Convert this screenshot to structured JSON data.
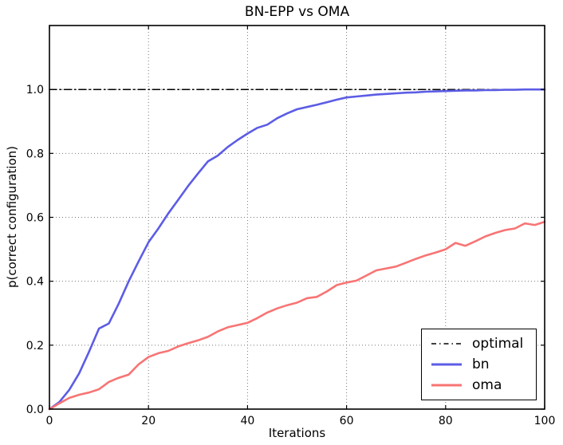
{
  "figure": {
    "background": "#ffffff"
  },
  "chart_data": {
    "type": "line",
    "title": "BN-EPP vs OMA",
    "xlabel": "Iterations",
    "ylabel": "p(correct configuration)",
    "xlim": [
      0,
      100
    ],
    "ylim": [
      0,
      1.2
    ],
    "grid": "dotted",
    "grid_color": "#777777",
    "axis_color": "#000000",
    "background_color": "#ffffff",
    "legend_position": "lower right",
    "xticks": {
      "values": [
        0,
        20,
        40,
        60,
        80,
        100
      ],
      "labels": [
        "0",
        "20",
        "40",
        "60",
        "80",
        "100"
      ]
    },
    "yticks": {
      "values": [
        0,
        0.2,
        0.4,
        0.6,
        0.8,
        1.0
      ],
      "labels": [
        "0.0",
        "0.2",
        "0.4",
        "0.6",
        "0.8",
        "1.0"
      ]
    },
    "series": [
      {
        "name": "optimal",
        "color": "#000000",
        "style": "dashdot",
        "line_width": 1.5,
        "x": [
          0,
          100
        ],
        "y": [
          1.0,
          1.0
        ]
      },
      {
        "name": "bn",
        "color": "#5c5ce6",
        "style": "solid",
        "line_width": 2.6,
        "x": [
          0,
          2,
          4,
          6,
          8,
          10,
          12,
          14,
          16,
          18,
          20,
          22,
          24,
          26,
          28,
          30,
          32,
          34,
          36,
          38,
          40,
          42,
          44,
          46,
          48,
          50,
          52,
          54,
          56,
          58,
          60,
          62,
          64,
          66,
          68,
          70,
          72,
          74,
          76,
          78,
          80,
          82,
          84,
          86,
          88,
          90,
          92,
          94,
          96,
          98,
          100
        ],
        "y": [
          0.0,
          0.022,
          0.06,
          0.112,
          0.18,
          0.252,
          0.268,
          0.33,
          0.4,
          0.462,
          0.522,
          0.565,
          0.612,
          0.655,
          0.698,
          0.737,
          0.775,
          0.793,
          0.82,
          0.842,
          0.862,
          0.88,
          0.89,
          0.91,
          0.925,
          0.938,
          0.945,
          0.952,
          0.96,
          0.968,
          0.975,
          0.978,
          0.981,
          0.984,
          0.986,
          0.988,
          0.99,
          0.991,
          0.993,
          0.994,
          0.995,
          0.996,
          0.997,
          0.997,
          0.998,
          0.998,
          0.999,
          0.999,
          1.0,
          1.0,
          1.0
        ]
      },
      {
        "name": "oma",
        "color": "#f87474",
        "style": "solid",
        "line_width": 2.6,
        "x": [
          0,
          2,
          4,
          6,
          8,
          10,
          12,
          14,
          16,
          18,
          20,
          22,
          24,
          26,
          28,
          30,
          32,
          34,
          36,
          38,
          40,
          42,
          44,
          46,
          48,
          50,
          52,
          54,
          56,
          58,
          60,
          62,
          64,
          66,
          68,
          70,
          72,
          74,
          76,
          78,
          80,
          82,
          84,
          86,
          88,
          90,
          92,
          94,
          96,
          98,
          100
        ],
        "y": [
          0.0,
          0.018,
          0.035,
          0.045,
          0.052,
          0.062,
          0.085,
          0.098,
          0.108,
          0.14,
          0.163,
          0.175,
          0.182,
          0.196,
          0.206,
          0.215,
          0.226,
          0.243,
          0.256,
          0.263,
          0.27,
          0.285,
          0.302,
          0.315,
          0.325,
          0.333,
          0.347,
          0.351,
          0.368,
          0.388,
          0.396,
          0.402,
          0.418,
          0.434,
          0.44,
          0.446,
          0.458,
          0.47,
          0.481,
          0.49,
          0.5,
          0.52,
          0.511,
          0.525,
          0.54,
          0.551,
          0.56,
          0.565,
          0.581,
          0.576,
          0.586
        ]
      }
    ]
  }
}
